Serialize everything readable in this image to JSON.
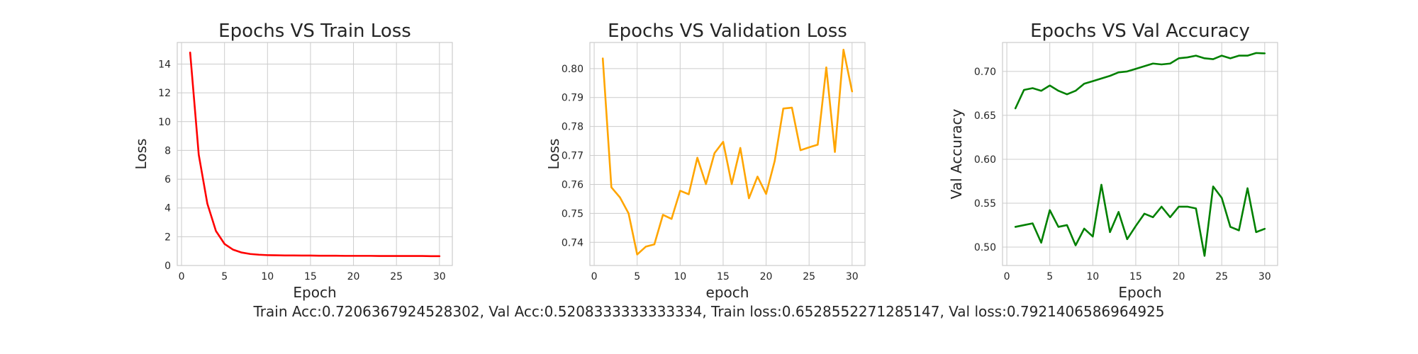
{
  "caption": "Train Acc:0.7206367924528302, Val Acc:0.5208333333333334, Train loss:0.6528552271285147, Val loss:0.7921406586964925",
  "chart_data": [
    {
      "type": "line",
      "title": "Epochs VS Train Loss",
      "xlabel": "Epoch",
      "ylabel": "Loss",
      "xlim": [
        -0.5,
        31.5
      ],
      "ylim": [
        0,
        15.5
      ],
      "xticks": [
        0,
        5,
        10,
        15,
        20,
        25,
        30
      ],
      "yticks": [
        0,
        2,
        4,
        6,
        8,
        10,
        12,
        14
      ],
      "ytick_labels": [
        "0",
        "2",
        "4",
        "6",
        "8",
        "10",
        "12",
        "14"
      ],
      "grid": true,
      "series": [
        {
          "color": "#ff0000",
          "x": [
            1,
            2,
            3,
            4,
            5,
            6,
            7,
            8,
            9,
            10,
            11,
            12,
            13,
            14,
            15,
            16,
            17,
            18,
            19,
            20,
            21,
            22,
            23,
            24,
            25,
            26,
            27,
            28,
            29,
            30
          ],
          "y": [
            14.8,
            7.7,
            4.3,
            2.4,
            1.5,
            1.1,
            0.9,
            0.8,
            0.75,
            0.72,
            0.71,
            0.7,
            0.7,
            0.69,
            0.69,
            0.68,
            0.68,
            0.68,
            0.67,
            0.67,
            0.67,
            0.67,
            0.66,
            0.66,
            0.66,
            0.66,
            0.66,
            0.66,
            0.65,
            0.65
          ]
        }
      ]
    },
    {
      "type": "line",
      "title": "Epochs VS Validation Loss",
      "xlabel": "epoch",
      "ylabel": "Loss",
      "xlim": [
        -0.5,
        31.5
      ],
      "ylim": [
        0.732,
        0.809
      ],
      "xticks": [
        0,
        5,
        10,
        15,
        20,
        25,
        30
      ],
      "yticks": [
        0.74,
        0.75,
        0.76,
        0.77,
        0.78,
        0.79,
        0.8
      ],
      "ytick_labels": [
        "0.74",
        "0.75",
        "0.76",
        "0.77",
        "0.78",
        "0.79",
        "0.80"
      ],
      "grid": true,
      "series": [
        {
          "color": "#ffa500",
          "x": [
            1,
            2,
            3,
            4,
            5,
            6,
            7,
            8,
            9,
            10,
            11,
            12,
            13,
            14,
            15,
            16,
            17,
            18,
            19,
            20,
            21,
            22,
            23,
            24,
            25,
            26,
            27,
            28,
            29,
            30
          ],
          "y": [
            0.8035,
            0.759,
            0.7555,
            0.75,
            0.7358,
            0.7385,
            0.7393,
            0.7495,
            0.7481,
            0.7578,
            0.7566,
            0.7692,
            0.7601,
            0.7708,
            0.7747,
            0.7601,
            0.7726,
            0.7552,
            0.7627,
            0.7567,
            0.7681,
            0.7862,
            0.7865,
            0.7718,
            0.7728,
            0.7737,
            0.8004,
            0.7712,
            0.8065,
            0.7921
          ]
        }
      ]
    },
    {
      "type": "line",
      "title": "Epochs VS Val Accuracy",
      "xlabel": "Epoch",
      "ylabel": "Val Accuracy",
      "xlim": [
        -0.5,
        31.5
      ],
      "ylim": [
        0.479,
        0.733
      ],
      "xticks": [
        0,
        5,
        10,
        15,
        20,
        25,
        30
      ],
      "yticks": [
        0.5,
        0.55,
        0.6,
        0.65,
        0.7
      ],
      "ytick_labels": [
        "0.50",
        "0.55",
        "0.60",
        "0.65",
        "0.70"
      ],
      "grid": true,
      "series": [
        {
          "color": "#008000",
          "x": [
            1,
            2,
            3,
            4,
            5,
            6,
            7,
            8,
            9,
            10,
            11,
            12,
            13,
            14,
            15,
            16,
            17,
            18,
            19,
            20,
            21,
            22,
            23,
            24,
            25,
            26,
            27,
            28,
            29,
            30
          ],
          "y": [
            0.658,
            0.679,
            0.681,
            0.678,
            0.684,
            0.678,
            0.674,
            0.678,
            0.686,
            0.689,
            0.692,
            0.695,
            0.699,
            0.7,
            0.703,
            0.706,
            0.709,
            0.708,
            0.709,
            0.715,
            0.716,
            0.718,
            0.715,
            0.714,
            0.718,
            0.715,
            0.718,
            0.718,
            0.721,
            0.7206
          ]
        },
        {
          "color": "#008000",
          "x": [
            1,
            2,
            3,
            4,
            5,
            6,
            7,
            8,
            9,
            10,
            11,
            12,
            13,
            14,
            15,
            16,
            17,
            18,
            19,
            20,
            21,
            22,
            23,
            24,
            25,
            26,
            27,
            28,
            29,
            30
          ],
          "y": [
            0.523,
            0.525,
            0.527,
            0.505,
            0.542,
            0.523,
            0.525,
            0.502,
            0.521,
            0.512,
            0.571,
            0.517,
            0.54,
            0.509,
            0.524,
            0.538,
            0.534,
            0.546,
            0.534,
            0.546,
            0.546,
            0.544,
            0.49,
            0.569,
            0.556,
            0.523,
            0.519,
            0.567,
            0.517,
            0.5208
          ]
        }
      ]
    }
  ]
}
